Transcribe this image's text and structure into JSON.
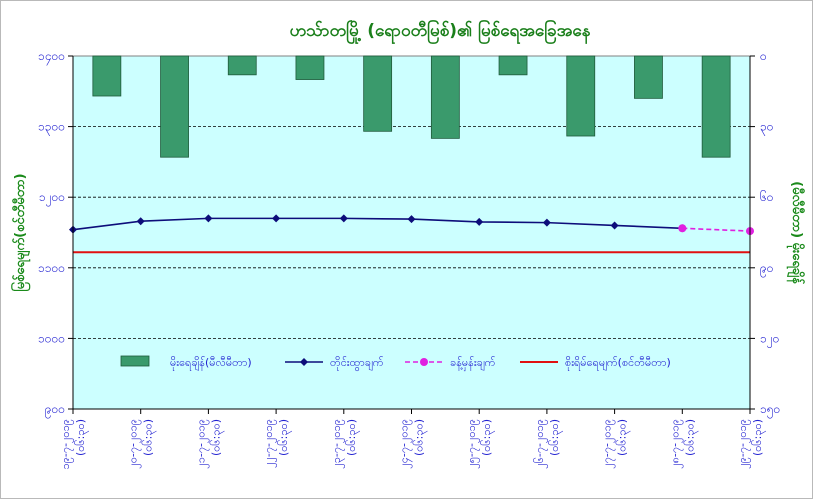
{
  "chart_data": {
    "type": "bar+line",
    "title": "ဟသ်ာတမြို့ (ရောဝတီမြစ်)၏ မြစ်ရေအခြေအနေ",
    "ylabel_left": "မြစ်ရေမျက်(စင်တီမီတာ)",
    "ylabel_right": "(မီလီမီတာ) မိုးရေချိန်",
    "ylim_left": [
      900,
      1400
    ],
    "yticks_left": [
      "၉၀၀",
      "၁၀၀၀",
      "၁၁၀၀",
      "၁၂၀၀",
      "၁၃၀၀",
      "၁၄၀၀"
    ],
    "ylim_right": [
      0,
      150
    ],
    "yticks_right": [
      "၀",
      "၃၀",
      "၆၀",
      "၉၀",
      "၁၂၀",
      "၁၅၀"
    ],
    "right_axis_inverted": true,
    "x": [
      "၁၉-၇-၂၀၁၉",
      "၂၀-၇-၂၀၁၉",
      "၂၁-၇-၂၀၁၉",
      "၂၂-၇-၂၀၁၉",
      "၂၃-၇-၂၀၁၉",
      "၂၄-၇-၂၀၁၉",
      "၂၅-၇-၂၀၁၉",
      "၂၆-၇-၂၀၁၉",
      "၂၇-၇-၂၀၁၉",
      "၂၈-၇-၂၀၁၉",
      "၂၉-၇-၂၀၁၉"
    ],
    "x_time": "(၀၆:၃၀)",
    "series": [
      {
        "name": "မိုးရေချိန်(မီလီမီတာ)",
        "kind": "bar",
        "axis": "right",
        "color": "#3a9a6c",
        "values": [
          17,
          43,
          8,
          10,
          32,
          35,
          8,
          34,
          18,
          43,
          null
        ]
      },
      {
        "name": "တိုင်းထွာချက်",
        "kind": "line",
        "axis": "left",
        "color": "#0d0d7a",
        "values": [
          1154,
          1166,
          1170,
          1170,
          1170,
          1169,
          1165,
          1164,
          1160,
          1156,
          null
        ]
      },
      {
        "name": "ခန့်မှန်းချက်",
        "kind": "dashed-line",
        "axis": "left",
        "color": "#e020e0",
        "values": [
          null,
          null,
          null,
          null,
          null,
          null,
          null,
          null,
          null,
          1156,
          1152
        ]
      },
      {
        "name": "စိုးရိမ်ရေမျက်(စင်တီမီတာ)",
        "kind": "hline",
        "axis": "left",
        "color": "#e01010",
        "value": 1122
      }
    ],
    "grid": "horizontal dashed",
    "legend": "bottom",
    "plot_background": "#ccffff"
  }
}
